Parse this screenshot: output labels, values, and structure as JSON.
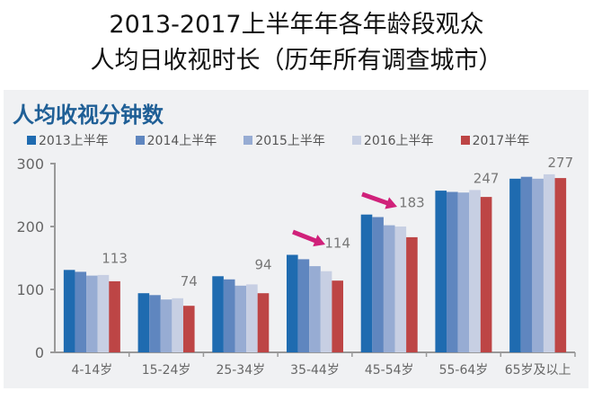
{
  "title_lines": [
    "2013-2017上半年年各年龄段观众",
    "人均日收视时长（历年所有调查城市）"
  ],
  "chart_data": {
    "type": "bar",
    "title": "人均收视分钟数",
    "categories": [
      "4-14岁",
      "15-24岁",
      "25-34岁",
      "35-44岁",
      "45-54岁",
      "55-64岁",
      "65岁及以上"
    ],
    "series": [
      {
        "name": "2013上半年",
        "color": "#1f6bb0",
        "values": [
          131,
          94,
          121,
          155,
          219,
          257,
          276
        ]
      },
      {
        "name": "2014上半年",
        "color": "#5f86bf",
        "values": [
          128,
          91,
          116,
          148,
          215,
          255,
          279
        ]
      },
      {
        "name": "2015上半年",
        "color": "#97acd3",
        "values": [
          122,
          84,
          106,
          137,
          202,
          254,
          276
        ]
      },
      {
        "name": "2016上半年",
        "color": "#c7cfe3",
        "values": [
          123,
          86,
          108,
          129,
          200,
          258,
          283
        ]
      },
      {
        "name": "2017半年",
        "color": "#bd4545",
        "values": [
          113,
          74,
          94,
          114,
          183,
          247,
          277
        ]
      }
    ],
    "data_labels": [
      "113",
      "74",
      "94",
      "114",
      "183",
      "247",
      "277"
    ],
    "yticks": [
      "0",
      "100",
      "200",
      "300"
    ],
    "ylim": [
      0,
      300
    ],
    "grid": false,
    "legend": "top",
    "annotations": [
      {
        "type": "arrow",
        "color": "#d0217a",
        "near": "35-44岁"
      },
      {
        "type": "arrow",
        "color": "#d0217a",
        "near": "45-54岁"
      }
    ]
  }
}
